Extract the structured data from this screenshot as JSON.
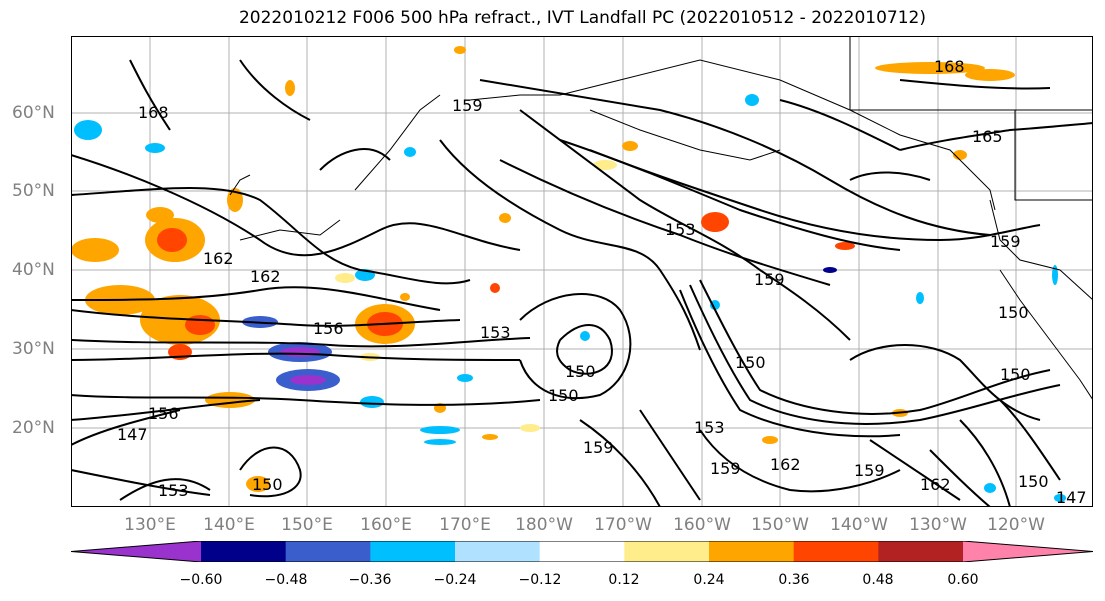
{
  "title": "2022010212 F006 500 hPa refract., IVT Landfall PC (2022010512 - 2022010712)",
  "lat_labels": [
    "60°N",
    "50°N",
    "40°N",
    "30°N",
    "20°N"
  ],
  "lon_labels": [
    "130°E",
    "140°E",
    "150°E",
    "160°E",
    "170°E",
    "180°W",
    "170°W",
    "160°W",
    "150°W",
    "140°W",
    "130°W",
    "120°W"
  ],
  "colorbar": {
    "ticks": [
      "−0.60",
      "−0.48",
      "−0.36",
      "−0.24",
      "−0.12",
      "0.12",
      "0.24",
      "0.36",
      "0.48",
      "0.60"
    ],
    "colors": [
      "#9a32cd",
      "#00008b",
      "#3a5fcd",
      "#00bfff",
      "#b0e2ff",
      "#ffffff",
      "#ffec8b",
      "#ffa500",
      "#ff4500",
      "#b22222",
      "#ff82ab"
    ]
  },
  "contour_labels": [
    "168",
    "159",
    "168",
    "165",
    "162",
    "162",
    "156",
    "153",
    "153",
    "159",
    "159",
    "150",
    "150",
    "150",
    "156",
    "147",
    "159",
    "153",
    "162",
    "159",
    "159",
    "150",
    "162",
    "150",
    "147",
    "153",
    "150",
    "150"
  ]
}
